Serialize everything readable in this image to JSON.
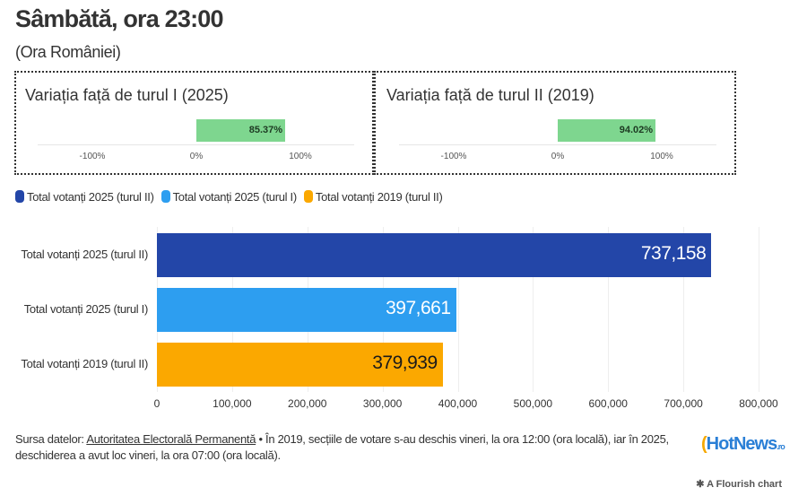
{
  "title": "Sâmbătă, ora 23:00",
  "subtitle": "(Ora României)",
  "panels": [
    {
      "title": "Variația față de turul I (2025)",
      "value": 85.37,
      "label": "85.37%",
      "ticks": [
        "-100%",
        "0%",
        "100%"
      ]
    },
    {
      "title": "Variația față de turul II (2019)",
      "value": 94.02,
      "label": "94.02%",
      "ticks": [
        "-100%",
        "0%",
        "100%"
      ]
    }
  ],
  "chart_data": {
    "type": "bar",
    "orientation": "horizontal",
    "categories": [
      "Total votanți 2025 (turul II)",
      "Total votanți 2025 (turul I)",
      "Total votanți 2019 (turul II)"
    ],
    "values": [
      737158,
      397661,
      379939
    ],
    "value_labels": [
      "737,158",
      "397,661",
      "379,939"
    ],
    "colors": [
      "#2346a8",
      "#2d9ef0",
      "#fba800"
    ],
    "label_colors": [
      "#ffffff",
      "#ffffff",
      "#1a1a1a"
    ],
    "legend": [
      "Total votanți 2025 (turul II)",
      "Total votanți 2025 (turul I)",
      "Total votanți 2019 (turul II)"
    ],
    "legend_placement": "top-left",
    "xlim": [
      0,
      800000
    ],
    "xticks": [
      0,
      100000,
      200000,
      300000,
      400000,
      500000,
      600000,
      700000,
      800000
    ],
    "xtick_labels": [
      "0",
      "100,000",
      "200,000",
      "300,000",
      "400,000",
      "500,000",
      "600,000",
      "700,000",
      "800,000"
    ],
    "grid": true
  },
  "source": {
    "prefix": "Sursa datelor: ",
    "link": "Autoritatea Electorală Permanentă",
    "text": " • În 2019, secțiile de votare s-au deschis vineri, la ora 12:00 (ora locală), iar în 2025, deschiderea a avut loc vineri, la ora 07:00 (ora locală)."
  },
  "logo": "HotNews.ro",
  "flourish": "A Flourish chart"
}
